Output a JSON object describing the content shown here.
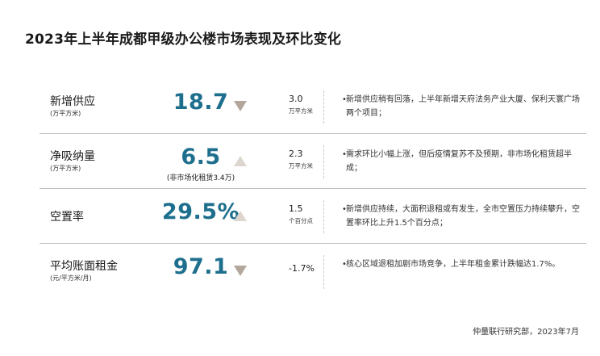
{
  "title": "2023年上半年成都甲级办公楼市场表现及环比变化",
  "colors": {
    "value": "#1e6f8e",
    "arrow": "#b3a79b",
    "divider": "#bfbfbf"
  },
  "rows": [
    {
      "label": "新增供应",
      "unit": "(万平方米)",
      "value": "18.7",
      "value_note": "",
      "direction": "down",
      "arrow_icon": "triangle-down-icon",
      "change": "3.0",
      "change_unit": "万平方米",
      "description": "新增供应稍有回落，上半年新增天府法务产业大厦、保利天寰广场两个项目；"
    },
    {
      "label": "净吸纳量",
      "unit": "(万平方米)",
      "value": "6.5",
      "value_note": "(非市场化租赁3.4万)",
      "direction": "up",
      "arrow_icon": "triangle-up-icon",
      "change": "2.3",
      "change_unit": "万平方米",
      "description": "需求环比小幅上涨，但后疫情复苏不及预期，非市场化租赁超半成；"
    },
    {
      "label": "空置率",
      "unit": "",
      "value": "29.5%",
      "value_note": "",
      "direction": "up",
      "arrow_icon": "triangle-up-icon",
      "change": "1.5",
      "change_unit": "个百分点",
      "description": "新增供应持续，大面积退租或有发生，全市空置压力持续攀升，空置率环比上升1.5个百分点；"
    },
    {
      "label": "平均账面租金",
      "unit": "(元/平方米/月)",
      "value": "97.1",
      "value_note": "",
      "direction": "down",
      "arrow_icon": "triangle-down-icon",
      "change": "-1.7%",
      "change_unit": "",
      "description": "核心区域退租加剧市场竞争，上半年租金累计跌幅达1.7%。"
    }
  ],
  "bullet": "•",
  "footer": "仲量联行研究部，2023年7月"
}
